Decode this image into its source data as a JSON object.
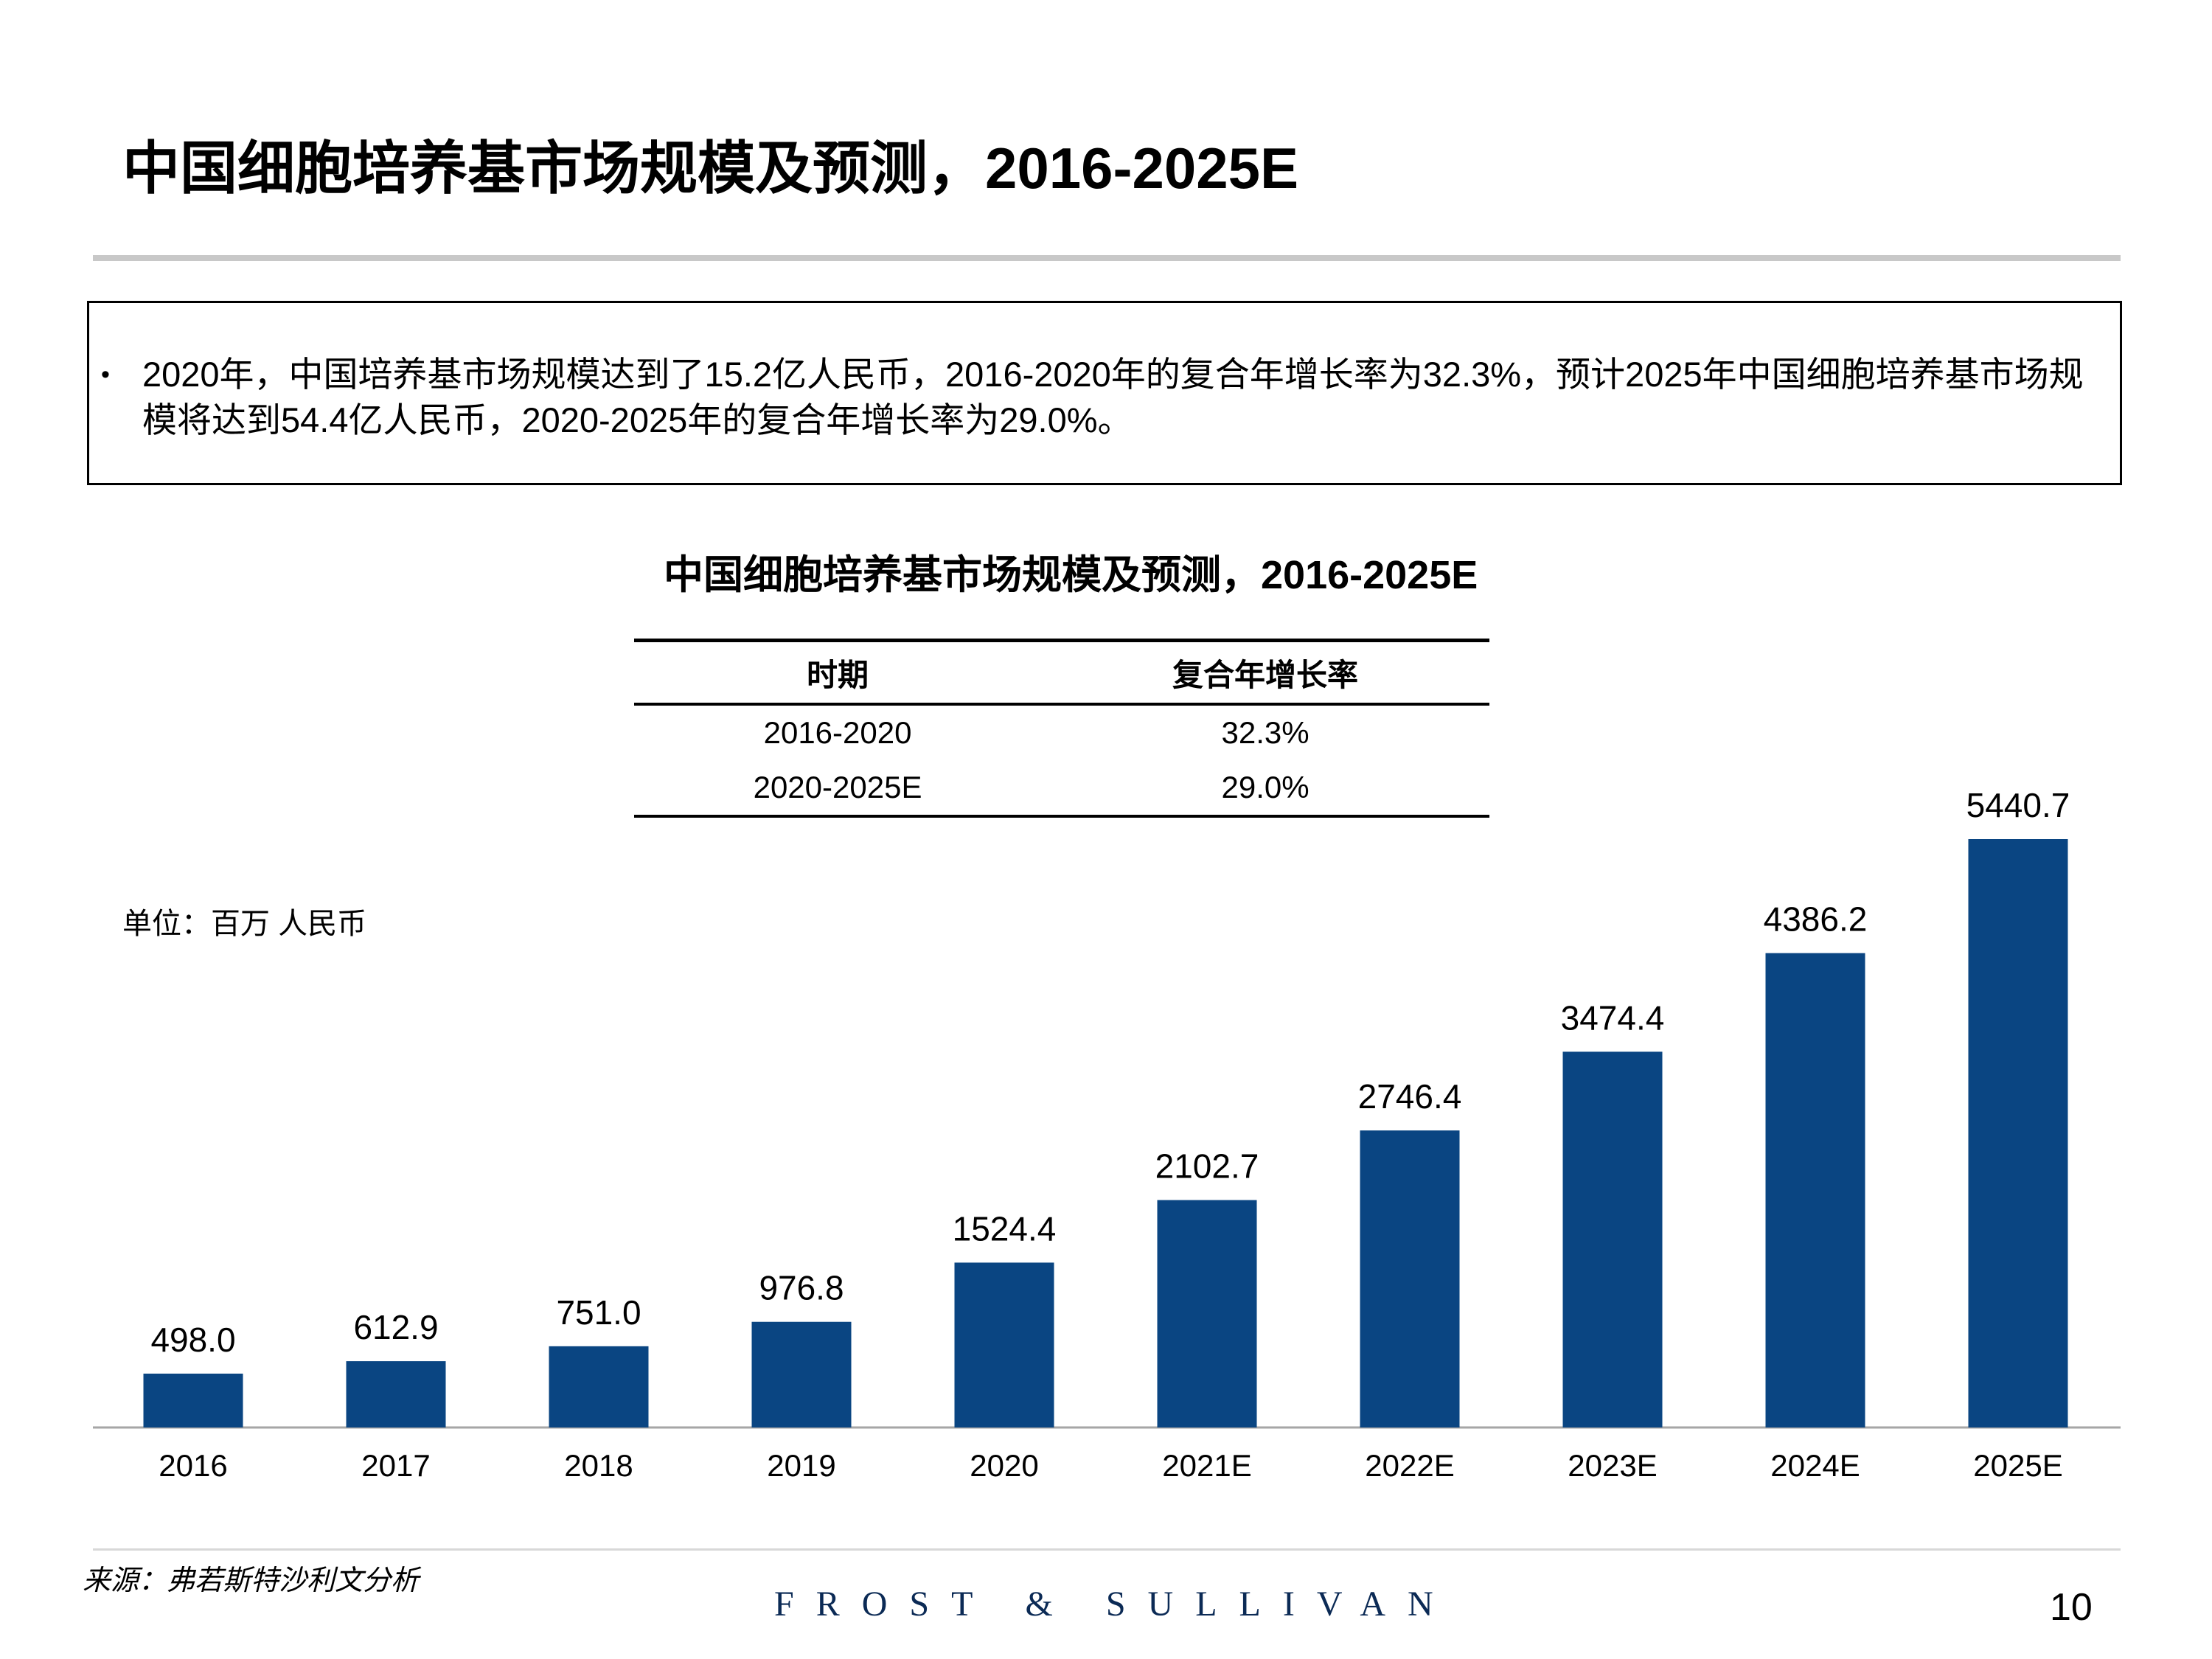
{
  "page": {
    "title": "中国细胞培养基市场规模及预测，2016-2025E",
    "summary_bullet": "•",
    "summary": "2020年，中国培养基市场规模达到了15.2亿人民币，2016-2020年的复合年增长率为32.3%，预计2025年中国细胞培养基市场规模将达到54.4亿人民币，2020-2025年的复合年增长率为29.0%。",
    "source": "来源：弗若斯特沙利文分析",
    "brand": "FROST & SULLIVAN",
    "page_number": "10"
  },
  "cagr_table": {
    "headers": [
      "时期",
      "复合年增长率"
    ],
    "rows": [
      [
        "2016-2020",
        "32.3%"
      ],
      [
        "2020-2025E",
        "29.0%"
      ]
    ]
  },
  "chart_data": {
    "type": "bar",
    "title": "中国细胞培养基市场规模及预测，2016-2025E",
    "unit_label": "单位：百万 人民币",
    "categories": [
      "2016",
      "2017",
      "2018",
      "2019",
      "2020",
      "2021E",
      "2022E",
      "2023E",
      "2024E",
      "2025E"
    ],
    "values": [
      498.0,
      612.9,
      751.0,
      976.8,
      1524.4,
      2102.7,
      2746.4,
      3474.4,
      4386.2,
      5440.7
    ],
    "value_labels": [
      "498.0",
      "612.9",
      "751.0",
      "976.8",
      "1524.4",
      "2102.7",
      "2746.4",
      "3474.4",
      "4386.2",
      "5440.7"
    ],
    "ylim": [
      0,
      5440.7
    ],
    "grid": false,
    "legend": "none",
    "bar_color": "#0a4582"
  }
}
